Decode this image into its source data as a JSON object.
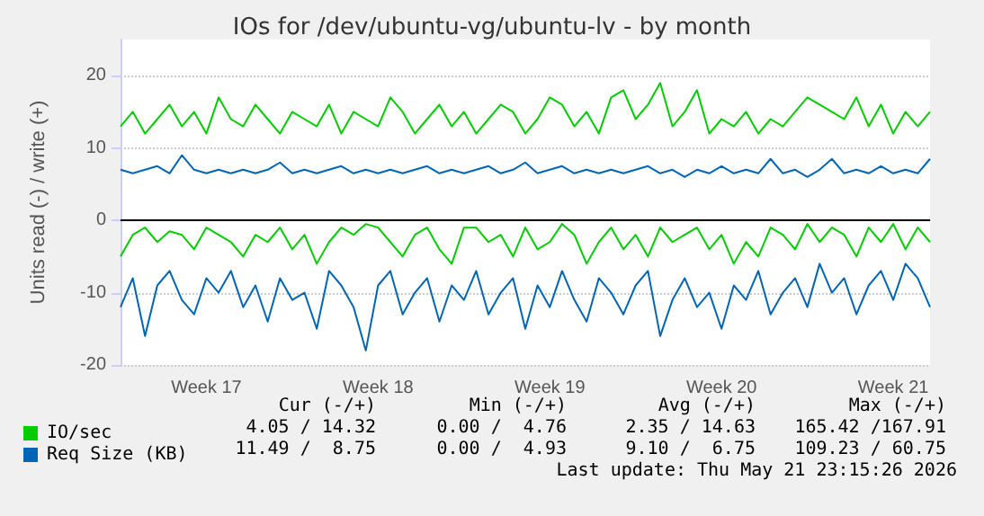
{
  "chart_data": {
    "type": "line",
    "title": "IOs for /dev/ubuntu-vg/ubuntu-lv - by month",
    "ylabel": "Units read (-) / write (+)",
    "categories": [
      null,
      null,
      null,
      null,
      null,
      null,
      null,
      "Week 17",
      null,
      null,
      null,
      null,
      null,
      null,
      null,
      null,
      null,
      null,
      null,
      null,
      null,
      "Week 18",
      null,
      null,
      null,
      null,
      null,
      null,
      null,
      null,
      null,
      null,
      null,
      null,
      null,
      "Week 19",
      null,
      null,
      null,
      null,
      null,
      null,
      null,
      null,
      null,
      null,
      null,
      null,
      null,
      "Week 20",
      null,
      null,
      null,
      null,
      null,
      null,
      null,
      null,
      null,
      null,
      null,
      null,
      null,
      "Week 21",
      null,
      null,
      null
    ],
    "ylim": [
      -20,
      25
    ],
    "yticks": [
      -20,
      -10,
      0,
      10,
      20
    ],
    "grid": "y",
    "legend": "bottom left",
    "marker": "none",
    "line_style": "solid",
    "series": [
      {
        "name": "IO/sec",
        "color": "#00cc00",
        "values": [
          13,
          15,
          12,
          14,
          16,
          13,
          15,
          12,
          17,
          14,
          13,
          16,
          14,
          12,
          15,
          14,
          13,
          16,
          12,
          15,
          14,
          13,
          17,
          15,
          12,
          14,
          16,
          13,
          15,
          12,
          14,
          16,
          15,
          12,
          14,
          17,
          16,
          13,
          15,
          12,
          17,
          18,
          14,
          16,
          19,
          13,
          15,
          18,
          12,
          14,
          13,
          15,
          12,
          14,
          13,
          15,
          17,
          16,
          15,
          14,
          17,
          13,
          16,
          12,
          15,
          13,
          15
        ]
      },
      {
        "name": "Req Size (KB)",
        "color": "#0066b3",
        "values": [
          7,
          6.5,
          7,
          7.5,
          6.5,
          9,
          7,
          6.5,
          7,
          6.5,
          7,
          6.5,
          7,
          8,
          6.5,
          7,
          6.5,
          7,
          7.5,
          6.5,
          7,
          6.5,
          7,
          6.5,
          7,
          7.5,
          6.5,
          7,
          6.5,
          7,
          7.5,
          6.5,
          7,
          8,
          6.5,
          7,
          7.5,
          6.5,
          7,
          6.5,
          7,
          6.5,
          7,
          7.5,
          6.5,
          7,
          6,
          7,
          6.5,
          7.5,
          6.5,
          7,
          6.5,
          8.5,
          6.5,
          7,
          6,
          7,
          8.5,
          6.5,
          7,
          6.5,
          7.5,
          6.5,
          7,
          6.5,
          8.5
        ]
      },
      {
        "color": "#00cc00",
        "values": [
          -5,
          -2,
          -1,
          -3,
          -1.5,
          -2,
          -4,
          -1,
          -2,
          -3,
          -5,
          -2,
          -3,
          -1,
          -4,
          -2,
          -6,
          -3,
          -1,
          -2,
          -0.5,
          -1,
          -3,
          -5,
          -2,
          -1,
          -4,
          -6,
          -1,
          -1,
          -3,
          -2,
          -5,
          -1,
          -4,
          -3,
          -0.5,
          -2,
          -6,
          -3,
          -1,
          -4,
          -2,
          -5,
          -1,
          -3,
          -2,
          -1,
          -4,
          -2,
          -6,
          -3,
          -5,
          -1,
          -2,
          -4,
          -0.5,
          -3,
          -1,
          -2,
          -5,
          -1,
          -3,
          -0.5,
          -4,
          -1,
          -3
        ]
      },
      {
        "color": "#0066b3",
        "values": [
          -12,
          -8,
          -16,
          -9,
          -7,
          -11,
          -13,
          -8,
          -10,
          -7,
          -12,
          -9,
          -14,
          -8,
          -11,
          -10,
          -15,
          -7,
          -9,
          -12,
          -18,
          -9,
          -7,
          -13,
          -10,
          -8,
          -14,
          -9,
          -11,
          -7,
          -13,
          -10,
          -8,
          -15,
          -9,
          -12,
          -7,
          -11,
          -14,
          -8,
          -10,
          -13,
          -9,
          -7,
          -16,
          -11,
          -8,
          -12,
          -10,
          -15,
          -9,
          -11,
          -7,
          -13,
          -10,
          -8,
          -12,
          -6,
          -10,
          -8,
          -13,
          -9,
          -7,
          -11,
          -6,
          -8,
          -12
        ]
      }
    ],
    "ref_lines": [
      {
        "axis": "y",
        "value": 0,
        "color": "#000000"
      }
    ],
    "annotations": [
      "Cur (-/+)",
      "Min (-/+)",
      "Avg (-/+)",
      "Max (-/+)",
      "4.05 / 14.32",
      "0.00 /  4.76",
      "2.35 / 14.63",
      "165.42 /167.91",
      "11.49 /  8.75",
      "0.00 /  4.93",
      "9.10 /  6.75",
      "109.23 / 60.75",
      "Last update: Thu May 21 23:15:26 2026"
    ]
  }
}
